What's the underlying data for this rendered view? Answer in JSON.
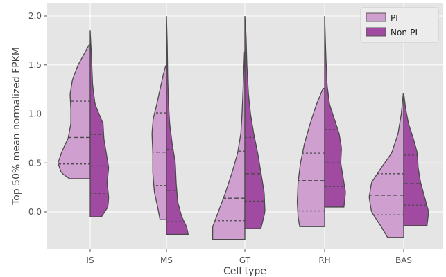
{
  "chart_data": {
    "type": "violin",
    "title": "",
    "xlabel": "Cell type",
    "ylabel": "Top 50% mean normalized FPKM",
    "categories": [
      "IS",
      "MS",
      "GT",
      "RH",
      "BAS"
    ],
    "ylim": [
      -0.3,
      2.05
    ],
    "yticks": [
      0.0,
      0.5,
      1.0,
      1.5,
      2.0
    ],
    "ytick_labels": [
      "0.0",
      "0.5",
      "1.0",
      "1.5",
      "2.0"
    ],
    "grid": true,
    "legend": "top-right",
    "series": [
      {
        "name": "PI",
        "side": "left",
        "color": "#cf9fcf",
        "violins": [
          {
            "category": "IS",
            "min": 0.34,
            "max": 1.71,
            "q1": 0.49,
            "median": 0.76,
            "q3": 1.13,
            "profile": [
              [
                0.34,
                0.52
              ],
              [
                0.4,
                0.72
              ],
              [
                0.5,
                0.8
              ],
              [
                0.62,
                0.7
              ],
              [
                0.75,
                0.55
              ],
              [
                0.9,
                0.48
              ],
              [
                1.05,
                0.48
              ],
              [
                1.2,
                0.5
              ],
              [
                1.35,
                0.44
              ],
              [
                1.5,
                0.3
              ],
              [
                1.62,
                0.14
              ],
              [
                1.71,
                0.02
              ]
            ]
          },
          {
            "category": "MS",
            "min": -0.08,
            "max": 1.49,
            "q1": 0.27,
            "median": 0.61,
            "q3": 1.01,
            "profile": [
              [
                -0.08,
                0.16
              ],
              [
                0.05,
                0.22
              ],
              [
                0.2,
                0.3
              ],
              [
                0.4,
                0.34
              ],
              [
                0.6,
                0.34
              ],
              [
                0.8,
                0.36
              ],
              [
                0.95,
                0.33
              ],
              [
                1.1,
                0.24
              ],
              [
                1.25,
                0.16
              ],
              [
                1.4,
                0.08
              ],
              [
                1.49,
                0.02
              ]
            ]
          },
          {
            "category": "GT",
            "min": -0.28,
            "max": 1.63,
            "q1": -0.09,
            "median": 0.14,
            "q3": 0.62,
            "profile": [
              [
                -0.28,
                0.8
              ],
              [
                -0.15,
                0.8
              ],
              [
                0.0,
                0.66
              ],
              [
                0.2,
                0.48
              ],
              [
                0.4,
                0.32
              ],
              [
                0.6,
                0.18
              ],
              [
                0.8,
                0.1
              ],
              [
                1.0,
                0.07
              ],
              [
                1.2,
                0.05
              ],
              [
                1.4,
                0.03
              ],
              [
                1.63,
                0.01
              ]
            ]
          },
          {
            "category": "RH",
            "min": -0.15,
            "max": 1.26,
            "q1": 0.01,
            "median": 0.32,
            "q3": 0.6,
            "profile": [
              [
                -0.15,
                0.62
              ],
              [
                -0.05,
                0.66
              ],
              [
                0.1,
                0.68
              ],
              [
                0.3,
                0.66
              ],
              [
                0.5,
                0.6
              ],
              [
                0.7,
                0.5
              ],
              [
                0.9,
                0.36
              ],
              [
                1.1,
                0.2
              ],
              [
                1.26,
                0.04
              ]
            ]
          },
          {
            "category": "BAS",
            "min": -0.26,
            "max": 1.21,
            "q1": -0.03,
            "median": 0.17,
            "q3": 0.39,
            "profile": [
              [
                -0.26,
                0.4
              ],
              [
                -0.15,
                0.56
              ],
              [
                0.0,
                0.8
              ],
              [
                0.15,
                0.86
              ],
              [
                0.3,
                0.8
              ],
              [
                0.45,
                0.56
              ],
              [
                0.6,
                0.3
              ],
              [
                0.8,
                0.14
              ],
              [
                1.0,
                0.06
              ],
              [
                1.21,
                0.01
              ]
            ]
          }
        ]
      },
      {
        "name": "Non-PI",
        "side": "right",
        "color": "#a14aa1",
        "violins": [
          {
            "category": "IS",
            "min": -0.05,
            "max": 1.85,
            "q1": 0.19,
            "median": 0.47,
            "q3": 0.79,
            "profile": [
              [
                -0.05,
                0.28
              ],
              [
                0.05,
                0.44
              ],
              [
                0.15,
                0.46
              ],
              [
                0.3,
                0.42
              ],
              [
                0.45,
                0.46
              ],
              [
                0.6,
                0.4
              ],
              [
                0.75,
                0.34
              ],
              [
                0.9,
                0.32
              ],
              [
                1.0,
                0.22
              ],
              [
                1.1,
                0.12
              ],
              [
                1.3,
                0.06
              ],
              [
                1.6,
                0.03
              ],
              [
                1.85,
                0.0
              ]
            ]
          },
          {
            "category": "MS",
            "min": -0.23,
            "max": 2.0,
            "q1": -0.1,
            "median": 0.22,
            "q3": 0.64,
            "profile": [
              [
                -0.23,
                0.54
              ],
              [
                -0.15,
                0.5
              ],
              [
                -0.05,
                0.38
              ],
              [
                0.1,
                0.28
              ],
              [
                0.3,
                0.24
              ],
              [
                0.5,
                0.22
              ],
              [
                0.7,
                0.14
              ],
              [
                0.9,
                0.08
              ],
              [
                1.1,
                0.05
              ],
              [
                1.4,
                0.03
              ],
              [
                1.7,
                0.02
              ],
              [
                2.0,
                0.0
              ]
            ]
          },
          {
            "category": "GT",
            "min": -0.17,
            "max": 2.0,
            "q1": 0.11,
            "median": 0.39,
            "q3": 0.76,
            "profile": [
              [
                -0.17,
                0.4
              ],
              [
                0.0,
                0.5
              ],
              [
                0.2,
                0.48
              ],
              [
                0.4,
                0.4
              ],
              [
                0.6,
                0.32
              ],
              [
                0.8,
                0.22
              ],
              [
                1.0,
                0.14
              ],
              [
                1.2,
                0.09
              ],
              [
                1.5,
                0.05
              ],
              [
                1.8,
                0.03
              ],
              [
                2.0,
                0.0
              ]
            ]
          },
          {
            "category": "RH",
            "min": 0.05,
            "max": 2.0,
            "q1": 0.26,
            "median": 0.5,
            "q3": 0.84,
            "profile": [
              [
                0.05,
                0.48
              ],
              [
                0.2,
                0.52
              ],
              [
                0.35,
                0.46
              ],
              [
                0.5,
                0.4
              ],
              [
                0.65,
                0.42
              ],
              [
                0.8,
                0.36
              ],
              [
                0.95,
                0.24
              ],
              [
                1.1,
                0.12
              ],
              [
                1.3,
                0.06
              ],
              [
                1.6,
                0.03
              ],
              [
                2.0,
                0.0
              ]
            ]
          },
          {
            "category": "BAS",
            "min": -0.14,
            "max": 1.21,
            "q1": 0.07,
            "median": 0.29,
            "q3": 0.58,
            "profile": [
              [
                -0.14,
                0.58
              ],
              [
                0.0,
                0.62
              ],
              [
                0.15,
                0.52
              ],
              [
                0.3,
                0.42
              ],
              [
                0.45,
                0.36
              ],
              [
                0.6,
                0.34
              ],
              [
                0.75,
                0.24
              ],
              [
                0.9,
                0.12
              ],
              [
                1.05,
                0.05
              ],
              [
                1.21,
                0.0
              ]
            ]
          }
        ]
      }
    ]
  }
}
